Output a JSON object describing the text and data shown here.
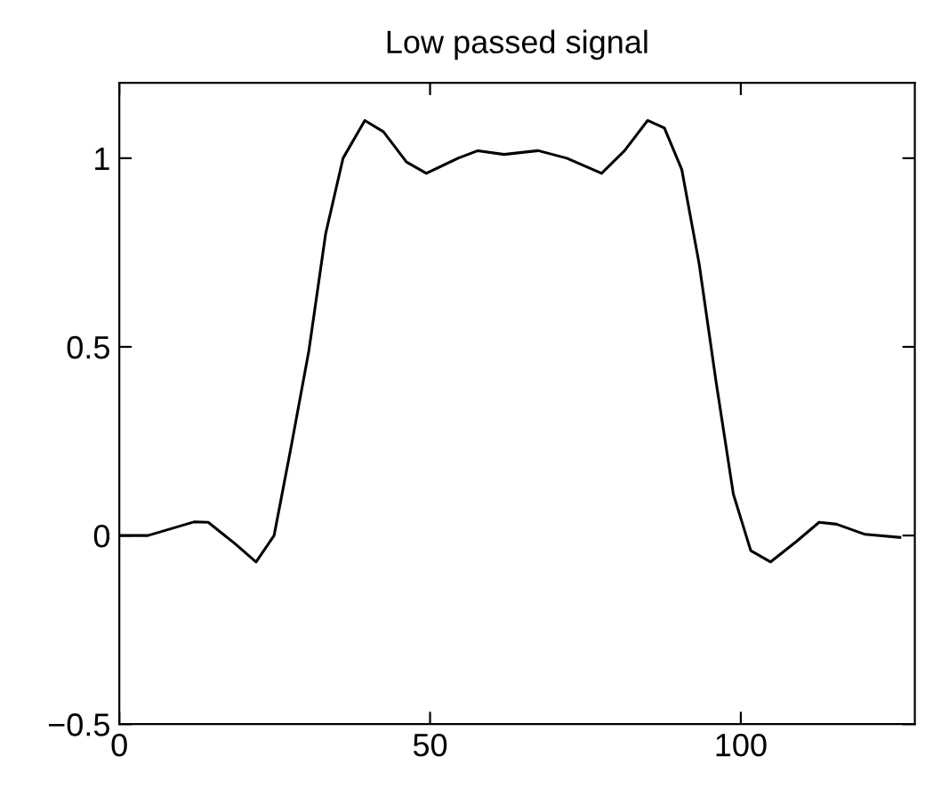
{
  "chart_data": {
    "type": "line",
    "title": "Low passed signal",
    "x": [
      0,
      4.6,
      12,
      14.3,
      18.5,
      22,
      24.9,
      27.7,
      30.5,
      33.2,
      36,
      39.5,
      42.5,
      46.2,
      49.4,
      54.5,
      57.7,
      61.9,
      67.4,
      72,
      77.6,
      81.3,
      85,
      87.7,
      90.5,
      93.3,
      96,
      98.8,
      101.6,
      104.8,
      109,
      112.6,
      115.4,
      120,
      125.6
    ],
    "series": [
      {
        "color": "#000000",
        "values": [
          0,
          0,
          0.036,
          0.035,
          -0.02,
          -0.07,
          0,
          0.24,
          0.49,
          0.8,
          1.0,
          1.1,
          1.07,
          0.99,
          0.96,
          1.0,
          1.02,
          1.01,
          1.02,
          1.0,
          0.96,
          1.02,
          1.1,
          1.08,
          0.97,
          0.72,
          0.41,
          0.11,
          -0.04,
          -0.07,
          -0.015,
          0.035,
          0.03,
          0.003,
          -0.005
        ]
      }
    ],
    "xlim": [
      0,
      128
    ],
    "xticks": [
      0,
      50,
      100
    ],
    "ylim": [
      -0.5,
      1.2
    ],
    "yticks": [
      -0.5,
      0,
      0.5,
      1
    ],
    "grid": false,
    "legend": false,
    "marker": "none",
    "line_style": "solid"
  }
}
